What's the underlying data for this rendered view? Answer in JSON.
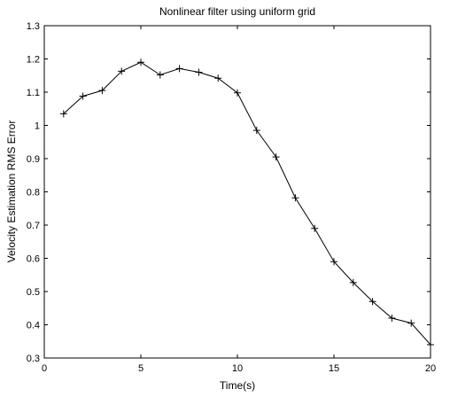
{
  "chart_data": {
    "type": "line",
    "title": "Nonlinear filter using uniform grid",
    "xlabel": "Time(s)",
    "ylabel": "Velocity Estimation RMS Error",
    "xlim": [
      0,
      20
    ],
    "ylim": [
      0.3,
      1.3
    ],
    "xticks": [
      0,
      5,
      10,
      15,
      20
    ],
    "xtick_labels": [
      "0",
      "5",
      "10",
      "15",
      "20"
    ],
    "yticks": [
      0.3,
      0.4,
      0.5,
      0.6,
      0.7,
      0.8,
      0.9,
      1.0,
      1.1,
      1.2,
      1.3
    ],
    "ytick_labels": [
      "0.3",
      "0.4",
      "0.5",
      "0.6",
      "0.7",
      "0.8",
      "0.9",
      "1",
      "1.1",
      "1.2",
      "1.3"
    ],
    "grid": false,
    "marker": "plus",
    "line_color": "#000000",
    "series": [
      {
        "x": [
          1,
          2,
          3,
          4,
          5,
          6,
          7,
          8,
          9,
          10,
          11,
          12,
          13,
          14,
          15,
          16,
          17,
          18,
          19,
          20
        ],
        "values": [
          1.035,
          1.088,
          1.105,
          1.163,
          1.19,
          1.152,
          1.171,
          1.16,
          1.142,
          1.098,
          0.985,
          0.905,
          0.782,
          0.69,
          0.59,
          0.527,
          0.47,
          0.42,
          0.405,
          0.34
        ]
      }
    ]
  }
}
